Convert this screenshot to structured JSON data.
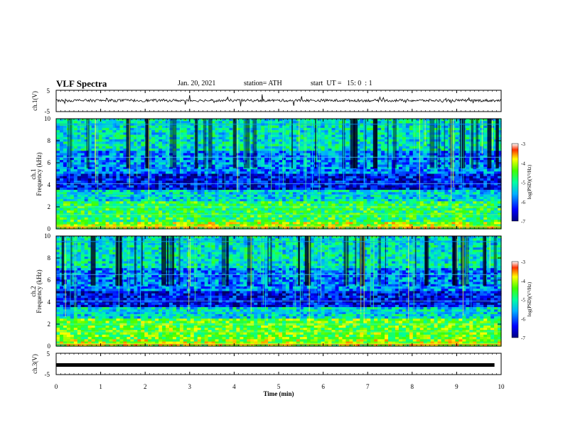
{
  "header": {
    "title": "VLF Spectra",
    "date": "Jan. 20, 2021",
    "station": "station= ATH",
    "start": "start  UT =   15: 0  : 1"
  },
  "chart_data": [
    {
      "type": "line",
      "panel": "ch1-waveform",
      "ylabel": "ch.1(V)",
      "yticks": [
        "5",
        "-5"
      ],
      "ylim": [
        -5,
        5
      ],
      "xlim": [
        0,
        10
      ],
      "description_values": {
        "baseline": 0.2,
        "noise_amplitude": 1.2
      }
    },
    {
      "type": "heatmap",
      "panel": "ch1-spectrogram",
      "ylabel_top": "ch.1",
      "ylabel": "Frequency  (kHz)",
      "yticks": [
        "0",
        "2",
        "4",
        "6",
        "8",
        "10"
      ],
      "ylim": [
        0,
        10
      ],
      "xlim": [
        0,
        10
      ],
      "colorbar": {
        "label": "log(PSD)(V²/Hz)",
        "ticks": [
          "-3",
          "-4",
          "-5",
          "-6",
          "-7"
        ],
        "range": [
          -7,
          -3
        ]
      }
    },
    {
      "type": "heatmap",
      "panel": "ch2-spectrogram",
      "ylabel_top": "ch.2",
      "ylabel": "Frequency  (kHz)",
      "yticks": [
        "0",
        "2",
        "4",
        "6",
        "8",
        "10"
      ],
      "ylim": [
        0,
        10
      ],
      "xlim": [
        0,
        10
      ],
      "colorbar": {
        "label": "log(PSD)(V²/Hz)",
        "ticks": [
          "-3",
          "-4",
          "-5",
          "-6",
          "-7"
        ],
        "range": [
          -7,
          -3
        ]
      }
    },
    {
      "type": "line",
      "panel": "ch3-waveform",
      "ylabel": "ch.3(V)",
      "yticks": [
        "5",
        "-5"
      ],
      "ylim": [
        -5,
        5
      ],
      "xlim": [
        0,
        10
      ],
      "description_values": {
        "baseline": -0.5
      }
    }
  ],
  "xaxis": {
    "label": "Time  (min)",
    "ticks": [
      "0",
      "1",
      "2",
      "3",
      "4",
      "5",
      "6",
      "7",
      "8",
      "9",
      "10"
    ],
    "range": [
      0,
      10
    ]
  },
  "colors": {
    "low": "#00008b",
    "mid": "#00c8ff",
    "high": "#ffff00",
    "peak": "#ff0000"
  }
}
